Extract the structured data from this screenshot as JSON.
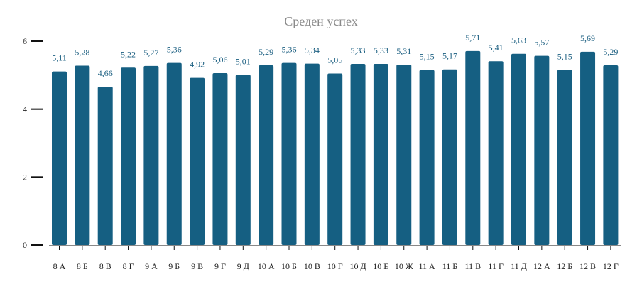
{
  "chart_data": {
    "type": "bar",
    "title": "Среден успех",
    "xlabel": "",
    "ylabel": "",
    "ylim": [
      0,
      6
    ],
    "y_ticks": [
      "0",
      "2",
      "4",
      "6"
    ],
    "grid": false,
    "bar_color": "#155f82",
    "categories": [
      "8 А",
      "8 Б",
      "8 В",
      "8 Г",
      "9 А",
      "9 Б",
      "9 В",
      "9 Г",
      "9 Д",
      "10 А",
      "10 Б",
      "10 В",
      "10 Г",
      "10 Д",
      "10 Е",
      "10 Ж",
      "11 А",
      "11 Б",
      "11 В",
      "11 Г",
      "11 Д",
      "12 А",
      "12 Б",
      "12 В",
      "12 Г"
    ],
    "values": [
      5.11,
      5.28,
      4.66,
      5.22,
      5.27,
      5.36,
      4.92,
      5.06,
      5.01,
      5.29,
      5.36,
      5.34,
      5.05,
      5.33,
      5.33,
      5.31,
      5.15,
      5.17,
      5.71,
      5.41,
      5.63,
      5.57,
      5.15,
      5.69,
      5.29
    ],
    "value_labels": [
      "5,11",
      "5,28",
      "4,66",
      "5,22",
      "5,27",
      "5,36",
      "4,92",
      "5,06",
      "5,01",
      "5,29",
      "5,36",
      "5,34",
      "5,05",
      "5,33",
      "5,33",
      "5,31",
      "5,15",
      "5,17",
      "5,71",
      "5,41",
      "5,63",
      "5,57",
      "5,15",
      "5,69",
      "5,29"
    ]
  }
}
